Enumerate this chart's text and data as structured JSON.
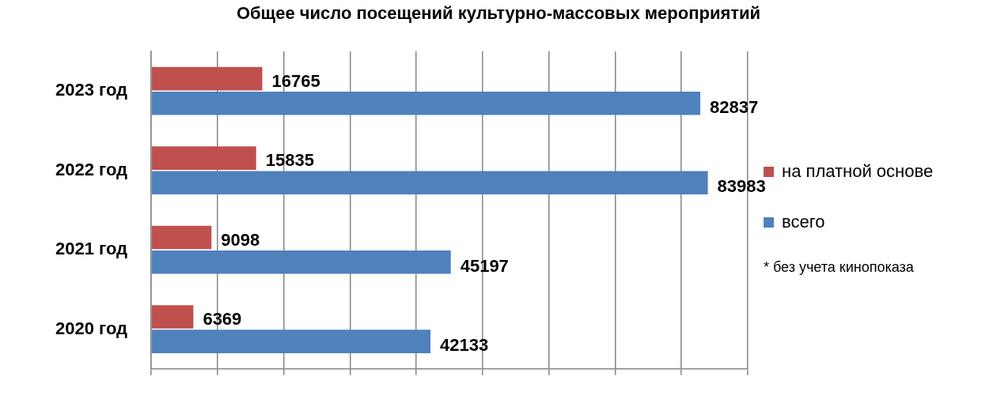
{
  "chart_data": {
    "type": "bar",
    "orientation": "horizontal",
    "title": "Общее число посещений культурно-массовых мероприятий",
    "categories": [
      "2023 год",
      "2022 год",
      "2021 год",
      "2020 год"
    ],
    "series": [
      {
        "name": "на платной основе",
        "color": "#c0504d",
        "values": [
          16765,
          15835,
          9098,
          6369
        ]
      },
      {
        "name": "всего",
        "color": "#4f81bd",
        "values": [
          82837,
          83983,
          45197,
          42133
        ]
      }
    ],
    "tick_labels": "y",
    "grid": "x",
    "data_labels": true,
    "legend": "right",
    "annotations": [
      "* без учета кинопоказа"
    ]
  }
}
